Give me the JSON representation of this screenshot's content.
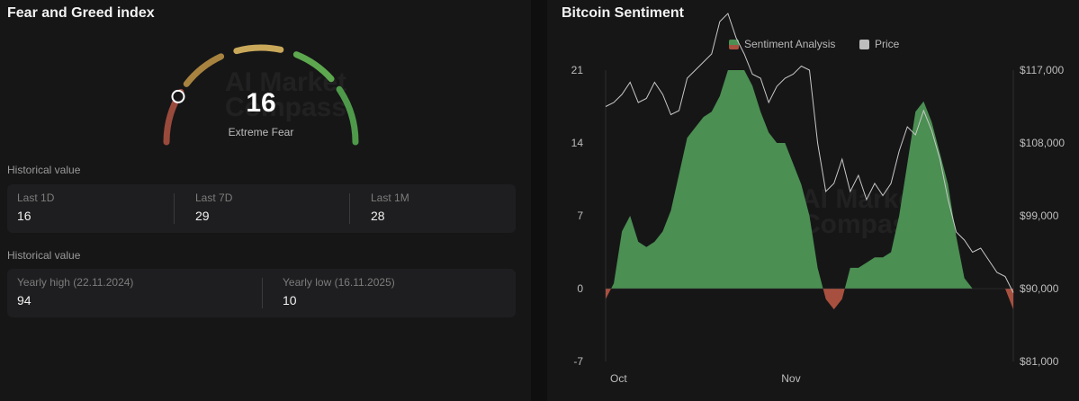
{
  "fear_greed": {
    "title": "Fear and Greed index",
    "value": 16,
    "value_text": "16",
    "label": "Extreme Fear",
    "colors": {
      "extreme_fear": "#9a4a3b",
      "fear": "#a8833f",
      "neutral": "#c9a85a",
      "greed": "#5da84e",
      "extreme_greed": "#4e9a4a"
    }
  },
  "historical_1": {
    "label": "Historical value",
    "items": [
      {
        "key": "Last 1D",
        "value": "16"
      },
      {
        "key": "Last 7D",
        "value": "29"
      },
      {
        "key": "Last 1M",
        "value": "28"
      }
    ]
  },
  "historical_2": {
    "label": "Historical value",
    "items": [
      {
        "key": "Yearly high (22.11.2024)",
        "value": "94"
      },
      {
        "key": "Yearly low (16.11.2025)",
        "value": "10"
      }
    ]
  },
  "watermark": {
    "line1": "AI Market",
    "line2": "Compass"
  },
  "chart_data": {
    "type": "area",
    "title": "Bitcoin Sentiment",
    "legend": [
      "Sentiment Analysis",
      "Price"
    ],
    "legend_position": "top",
    "x_ticks": [
      "Oct",
      "Nov"
    ],
    "y_left": {
      "ticks": [
        21,
        14,
        7,
        0,
        -7
      ],
      "tick_labels": [
        "21",
        "14",
        "7",
        "0",
        "-7"
      ],
      "range": [
        -7,
        21
      ]
    },
    "y_right": {
      "ticks": [
        117000,
        108000,
        99000,
        90000,
        81000
      ],
      "tick_labels": [
        "$117,000",
        "$108,000",
        "$99,000",
        "$90,000",
        "$81,000"
      ],
      "range": [
        81000,
        117000
      ]
    },
    "colors": {
      "positive": "#4b8f52",
      "negative": "#a8503f",
      "price": "#c8c8c8",
      "legend_price": "#bdbdbd"
    },
    "x": [
      0,
      1,
      2,
      3,
      4,
      5,
      6,
      7,
      8,
      9,
      10,
      11,
      12,
      13,
      14,
      15,
      16,
      17,
      18,
      19,
      20,
      21,
      22,
      23,
      24,
      25,
      26,
      27,
      28,
      29,
      30,
      31,
      32,
      33,
      34,
      35,
      36,
      37,
      38,
      39,
      40,
      41,
      42,
      43,
      44,
      45,
      46,
      47,
      48,
      49,
      50
    ],
    "series": [
      {
        "name": "Sentiment Analysis",
        "values": [
          -1,
          0.5,
          5.5,
          7,
          4.5,
          4,
          4.5,
          5.5,
          7.5,
          11,
          14.5,
          15.5,
          16.5,
          17,
          18.5,
          21,
          21,
          21,
          19.5,
          17,
          15,
          14,
          14,
          12,
          10,
          7,
          2,
          -1,
          -2,
          -1,
          2,
          2,
          2.5,
          3,
          3,
          3.5,
          7,
          12,
          17,
          18,
          16,
          13,
          10,
          5,
          1,
          0,
          0,
          0,
          0,
          0,
          -2
        ]
      },
      {
        "name": "Price",
        "values": [
          112500,
          113000,
          114000,
          115500,
          113000,
          113500,
          115500,
          114000,
          111500,
          112000,
          116000,
          117000,
          118000,
          119000,
          123000,
          124000,
          121000,
          119000,
          116500,
          116000,
          113000,
          115000,
          116000,
          116500,
          117500,
          117000,
          108000,
          102000,
          103000,
          106000,
          102000,
          104000,
          101000,
          103000,
          101500,
          103000,
          107000,
          110000,
          109000,
          112000,
          109500,
          106000,
          101000,
          97000,
          96000,
          94500,
          95000,
          93500,
          92000,
          91500,
          89500
        ]
      }
    ]
  }
}
